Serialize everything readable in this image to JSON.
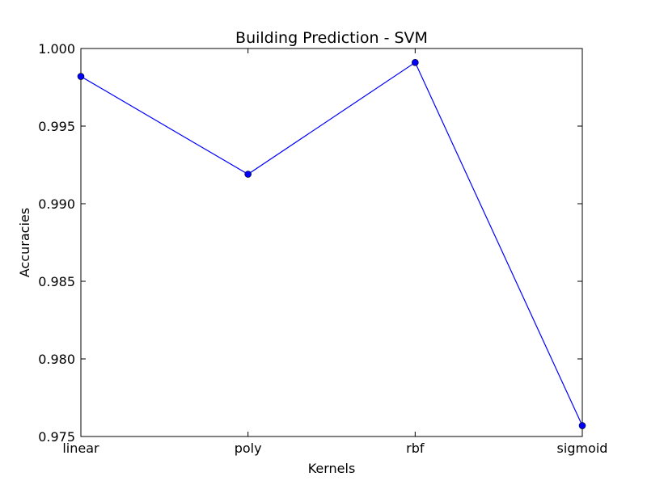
{
  "chart_data": {
    "type": "line",
    "title": "Building Prediction - SVM",
    "xlabel": "Kernels",
    "ylabel": "Accuracies",
    "categories": [
      "linear",
      "poly",
      "rbf",
      "sigmoid"
    ],
    "series": [
      {
        "values": [
          0.9982,
          0.9919,
          0.9991,
          0.9757
        ],
        "color": "#0000ff",
        "marker": "circle"
      }
    ],
    "ylim": [
      0.975,
      1.0
    ],
    "yticks": [
      0.975,
      0.98,
      0.985,
      0.99,
      0.995,
      1.0
    ],
    "ytick_labels": [
      "0.975",
      "0.980",
      "0.985",
      "0.990",
      "0.995",
      "1.000"
    ],
    "grid": false,
    "legend": "none"
  }
}
